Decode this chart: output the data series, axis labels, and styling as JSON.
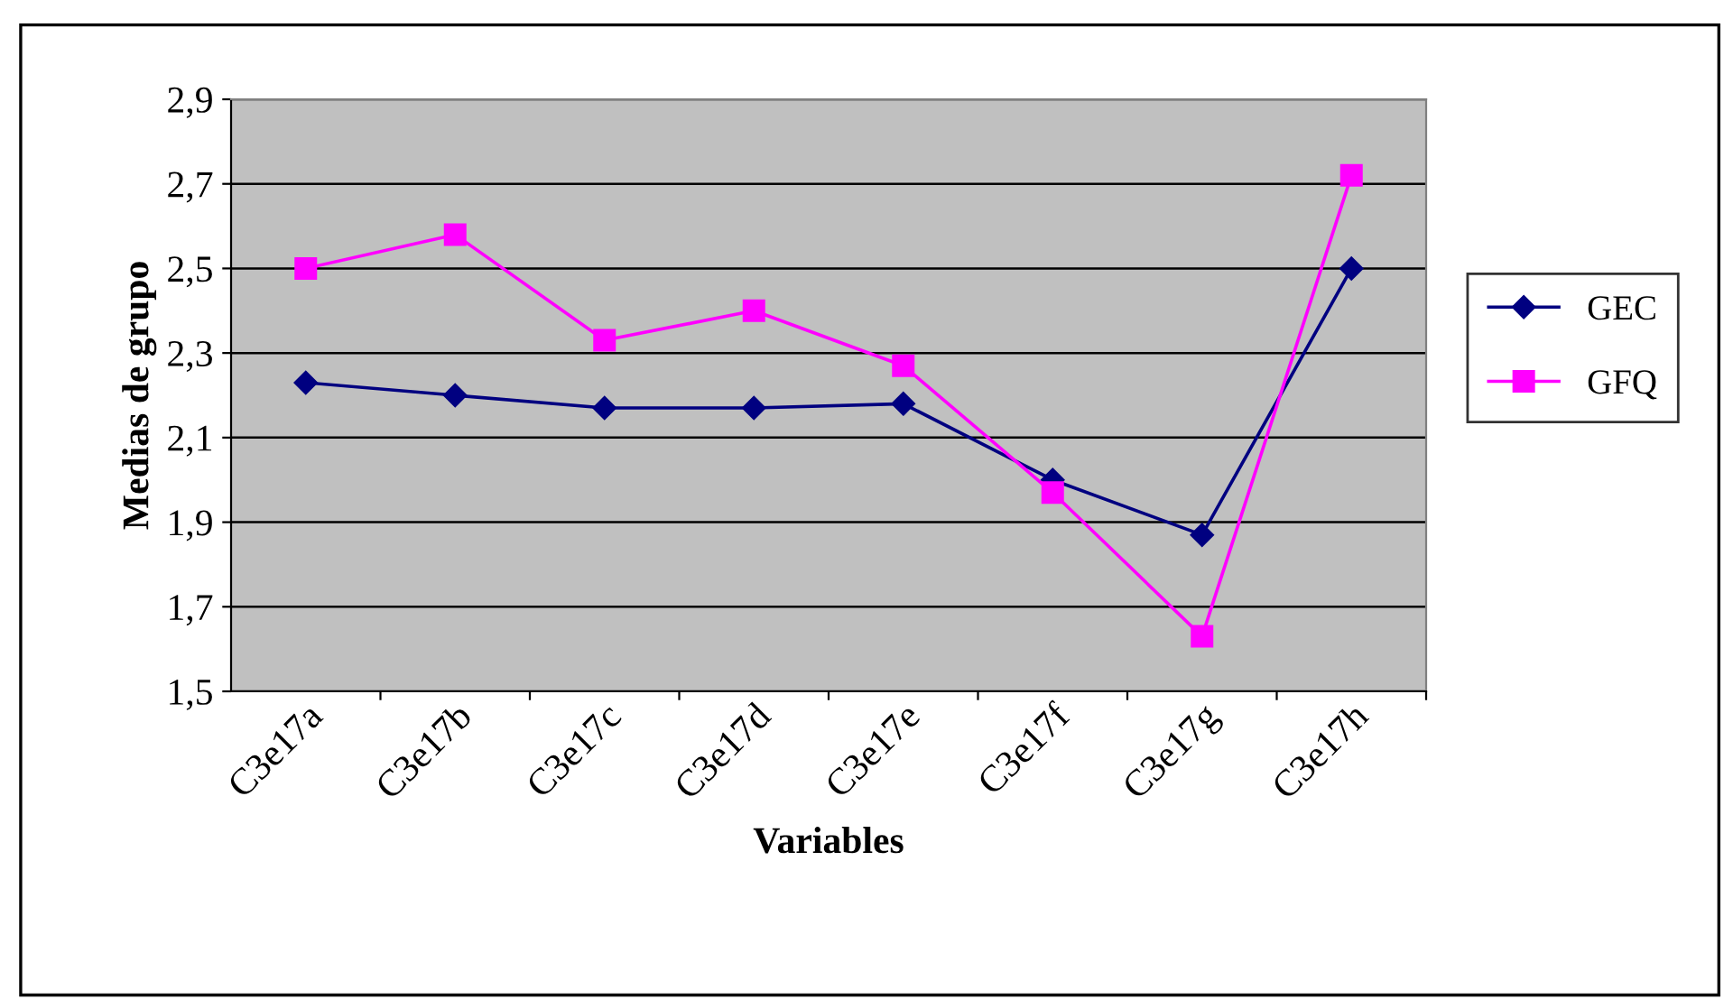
{
  "chart_data": {
    "type": "line",
    "xlabel": "Variables",
    "ylabel": "Medias de grupo",
    "categories": [
      "C3e17a",
      "C3e17b",
      "C3e17c",
      "C3e17d",
      "C3e17e",
      "C3e17f",
      "C3e17g",
      "C3e17h"
    ],
    "series": [
      {
        "name": "GEC",
        "color": "#000080",
        "marker": "diamond",
        "values": [
          2.23,
          2.2,
          2.17,
          2.17,
          2.18,
          2.0,
          1.87,
          2.5
        ]
      },
      {
        "name": "GFQ",
        "color": "#ff00ff",
        "marker": "square",
        "values": [
          2.5,
          2.58,
          2.33,
          2.4,
          2.27,
          1.97,
          1.63,
          2.72
        ]
      }
    ],
    "ylim": [
      1.5,
      2.9
    ],
    "yticks": [
      {
        "value": 1.5,
        "label": "1,5"
      },
      {
        "value": 1.7,
        "label": "1,7"
      },
      {
        "value": 1.9,
        "label": "1,9"
      },
      {
        "value": 2.1,
        "label": "2,1"
      },
      {
        "value": 2.3,
        "label": "2,3"
      },
      {
        "value": 2.5,
        "label": "2,5"
      },
      {
        "value": 2.7,
        "label": "2,7"
      },
      {
        "value": 2.9,
        "label": "2,9"
      }
    ],
    "grid": "y",
    "legend": "right",
    "line_style": "solid"
  }
}
